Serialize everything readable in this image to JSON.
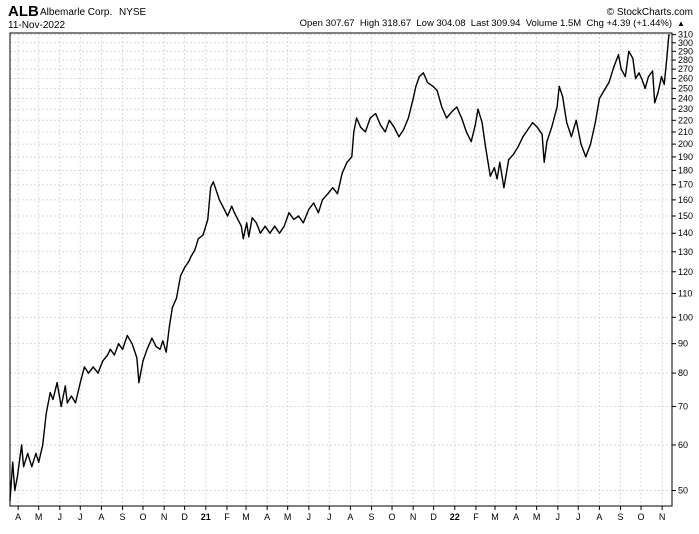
{
  "header": {
    "symbol": "ALB",
    "company": "Albemarle Corp.",
    "exchange": "NYSE",
    "date": "11-Nov-2022",
    "brand": "© StockCharts.com",
    "quote_line": "Open 307.67  High 318.67  Low 304.08  Last 309.94  Volume 1.5M  Chg +4.39 (+1.44%)",
    "up_arrow": "▲",
    "up_color": "#1a9e2a"
  },
  "chart_data": {
    "type": "line",
    "title": "ALB",
    "yscale": "log",
    "ylim": [
      47,
      312
    ],
    "y_ticks": [
      50,
      60,
      70,
      80,
      90,
      100,
      110,
      120,
      130,
      140,
      150,
      160,
      170,
      180,
      190,
      200,
      210,
      220,
      230,
      240,
      250,
      260,
      270,
      280,
      290,
      300,
      310
    ],
    "x_ticks": [
      {
        "label": "A",
        "bold": false
      },
      {
        "label": "M",
        "bold": false
      },
      {
        "label": "J",
        "bold": false
      },
      {
        "label": "J",
        "bold": false
      },
      {
        "label": "A",
        "bold": false
      },
      {
        "label": "S",
        "bold": false
      },
      {
        "label": "O",
        "bold": false
      },
      {
        "label": "N",
        "bold": false
      },
      {
        "label": "D",
        "bold": false
      },
      {
        "label": "21",
        "bold": true
      },
      {
        "label": "F",
        "bold": false
      },
      {
        "label": "M",
        "bold": false
      },
      {
        "label": "A",
        "bold": false
      },
      {
        "label": "M",
        "bold": false
      },
      {
        "label": "J",
        "bold": false
      },
      {
        "label": "J",
        "bold": false
      },
      {
        "label": "A",
        "bold": false
      },
      {
        "label": "S",
        "bold": false
      },
      {
        "label": "O",
        "bold": false
      },
      {
        "label": "N",
        "bold": false
      },
      {
        "label": "D",
        "bold": false
      },
      {
        "label": "22",
        "bold": true
      },
      {
        "label": "F",
        "bold": false
      },
      {
        "label": "M",
        "bold": false
      },
      {
        "label": "A",
        "bold": false
      },
      {
        "label": "M",
        "bold": false
      },
      {
        "label": "J",
        "bold": false
      },
      {
        "label": "J",
        "bold": false
      },
      {
        "label": "A",
        "bold": false
      },
      {
        "label": "S",
        "bold": false
      },
      {
        "label": "O",
        "bold": false
      },
      {
        "label": "N",
        "bold": false
      }
    ],
    "grid": true,
    "line_color": "#000000",
    "series": [
      {
        "points": [
          [
            "2020-03-20",
            48
          ],
          [
            "2020-03-24",
            56
          ],
          [
            "2020-03-27",
            50
          ],
          [
            "2020-03-31",
            53
          ],
          [
            "2020-04-06",
            60
          ],
          [
            "2020-04-09",
            55
          ],
          [
            "2020-04-15",
            58
          ],
          [
            "2020-04-21",
            55
          ],
          [
            "2020-04-27",
            58
          ],
          [
            "2020-05-01",
            56
          ],
          [
            "2020-05-07",
            60
          ],
          [
            "2020-05-12",
            68
          ],
          [
            "2020-05-18",
            74
          ],
          [
            "2020-05-22",
            72
          ],
          [
            "2020-05-28",
            77
          ],
          [
            "2020-06-03",
            70
          ],
          [
            "2020-06-09",
            76
          ],
          [
            "2020-06-12",
            71
          ],
          [
            "2020-06-18",
            73
          ],
          [
            "2020-06-24",
            71
          ],
          [
            "2020-07-01",
            77
          ],
          [
            "2020-07-07",
            82
          ],
          [
            "2020-07-13",
            80
          ],
          [
            "2020-07-20",
            82
          ],
          [
            "2020-07-27",
            80
          ],
          [
            "2020-08-03",
            84
          ],
          [
            "2020-08-10",
            86
          ],
          [
            "2020-08-14",
            88
          ],
          [
            "2020-08-20",
            86
          ],
          [
            "2020-08-26",
            90
          ],
          [
            "2020-09-01",
            88
          ],
          [
            "2020-09-08",
            93
          ],
          [
            "2020-09-15",
            90
          ],
          [
            "2020-09-22",
            85
          ],
          [
            "2020-09-25",
            77
          ],
          [
            "2020-10-01",
            84
          ],
          [
            "2020-10-07",
            88
          ],
          [
            "2020-10-14",
            92
          ],
          [
            "2020-10-20",
            89
          ],
          [
            "2020-10-26",
            88
          ],
          [
            "2020-10-30",
            91
          ],
          [
            "2020-11-04",
            87
          ],
          [
            "2020-11-09",
            97
          ],
          [
            "2020-11-13",
            104
          ],
          [
            "2020-11-19",
            108
          ],
          [
            "2020-11-25",
            118
          ],
          [
            "2020-12-01",
            122
          ],
          [
            "2020-12-07",
            125
          ],
          [
            "2020-12-11",
            128
          ],
          [
            "2020-12-16",
            131
          ],
          [
            "2020-12-21",
            137
          ],
          [
            "2020-12-28",
            139
          ],
          [
            "2021-01-04",
            148
          ],
          [
            "2021-01-08",
            168
          ],
          [
            "2021-01-12",
            172
          ],
          [
            "2021-01-15",
            168
          ],
          [
            "2021-01-21",
            160
          ],
          [
            "2021-01-27",
            155
          ],
          [
            "2021-02-02",
            150
          ],
          [
            "2021-02-08",
            156
          ],
          [
            "2021-02-12",
            152
          ],
          [
            "2021-02-17",
            148
          ],
          [
            "2021-02-22",
            144
          ],
          [
            "2021-02-25",
            137
          ],
          [
            "2021-03-02",
            146
          ],
          [
            "2021-03-05",
            138
          ],
          [
            "2021-03-10",
            149
          ],
          [
            "2021-03-16",
            146
          ],
          [
            "2021-03-22",
            140
          ],
          [
            "2021-03-29",
            144
          ],
          [
            "2021-04-05",
            140
          ],
          [
            "2021-04-12",
            144
          ],
          [
            "2021-04-19",
            140
          ],
          [
            "2021-04-26",
            144
          ],
          [
            "2021-05-03",
            152
          ],
          [
            "2021-05-10",
            148
          ],
          [
            "2021-05-17",
            150
          ],
          [
            "2021-05-24",
            146
          ],
          [
            "2021-06-01",
            154
          ],
          [
            "2021-06-08",
            158
          ],
          [
            "2021-06-15",
            152
          ],
          [
            "2021-06-21",
            160
          ],
          [
            "2021-06-29",
            164
          ],
          [
            "2021-07-06",
            168
          ],
          [
            "2021-07-13",
            164
          ],
          [
            "2021-07-20",
            178
          ],
          [
            "2021-07-27",
            186
          ],
          [
            "2021-08-03",
            190
          ],
          [
            "2021-08-06",
            210
          ],
          [
            "2021-08-10",
            222
          ],
          [
            "2021-08-16",
            214
          ],
          [
            "2021-08-23",
            210
          ],
          [
            "2021-08-30",
            222
          ],
          [
            "2021-09-07",
            226
          ],
          [
            "2021-09-14",
            216
          ],
          [
            "2021-09-21",
            210
          ],
          [
            "2021-09-27",
            220
          ],
          [
            "2021-10-04",
            214
          ],
          [
            "2021-10-11",
            206
          ],
          [
            "2021-10-18",
            212
          ],
          [
            "2021-10-25",
            222
          ],
          [
            "2021-11-01",
            240
          ],
          [
            "2021-11-05",
            252
          ],
          [
            "2021-11-10",
            262
          ],
          [
            "2021-11-16",
            266
          ],
          [
            "2021-11-22",
            256
          ],
          [
            "2021-11-30",
            252
          ],
          [
            "2021-12-06",
            248
          ],
          [
            "2021-12-13",
            232
          ],
          [
            "2021-12-20",
            222
          ],
          [
            "2021-12-28",
            228
          ],
          [
            "2022-01-04",
            232
          ],
          [
            "2022-01-11",
            222
          ],
          [
            "2022-01-18",
            210
          ],
          [
            "2022-01-25",
            202
          ],
          [
            "2022-01-31",
            216
          ],
          [
            "2022-02-04",
            230
          ],
          [
            "2022-02-10",
            218
          ],
          [
            "2022-02-15",
            198
          ],
          [
            "2022-02-22",
            176
          ],
          [
            "2022-02-28",
            182
          ],
          [
            "2022-03-04",
            174
          ],
          [
            "2022-03-08",
            186
          ],
          [
            "2022-03-14",
            168
          ],
          [
            "2022-03-21",
            188
          ],
          [
            "2022-03-28",
            192
          ],
          [
            "2022-04-04",
            198
          ],
          [
            "2022-04-11",
            206
          ],
          [
            "2022-04-18",
            212
          ],
          [
            "2022-04-25",
            218
          ],
          [
            "2022-05-02",
            214
          ],
          [
            "2022-05-09",
            208
          ],
          [
            "2022-05-12",
            186
          ],
          [
            "2022-05-16",
            202
          ],
          [
            "2022-05-23",
            214
          ],
          [
            "2022-05-31",
            232
          ],
          [
            "2022-06-03",
            252
          ],
          [
            "2022-06-08",
            242
          ],
          [
            "2022-06-14",
            218
          ],
          [
            "2022-06-21",
            206
          ],
          [
            "2022-06-28",
            220
          ],
          [
            "2022-07-05",
            200
          ],
          [
            "2022-07-12",
            190
          ],
          [
            "2022-07-19",
            200
          ],
          [
            "2022-07-26",
            218
          ],
          [
            "2022-08-01",
            240
          ],
          [
            "2022-08-08",
            248
          ],
          [
            "2022-08-15",
            256
          ],
          [
            "2022-08-22",
            272
          ],
          [
            "2022-08-29",
            286
          ],
          [
            "2022-09-02",
            270
          ],
          [
            "2022-09-08",
            262
          ],
          [
            "2022-09-13",
            290
          ],
          [
            "2022-09-19",
            282
          ],
          [
            "2022-09-23",
            260
          ],
          [
            "2022-09-28",
            266
          ],
          [
            "2022-10-03",
            258
          ],
          [
            "2022-10-07",
            250
          ],
          [
            "2022-10-12",
            262
          ],
          [
            "2022-10-18",
            268
          ],
          [
            "2022-10-21",
            236
          ],
          [
            "2022-10-26",
            246
          ],
          [
            "2022-10-31",
            262
          ],
          [
            "2022-11-04",
            254
          ],
          [
            "2022-11-08",
            284
          ],
          [
            "2022-11-10",
            302
          ],
          [
            "2022-11-11",
            310
          ]
        ]
      }
    ]
  }
}
